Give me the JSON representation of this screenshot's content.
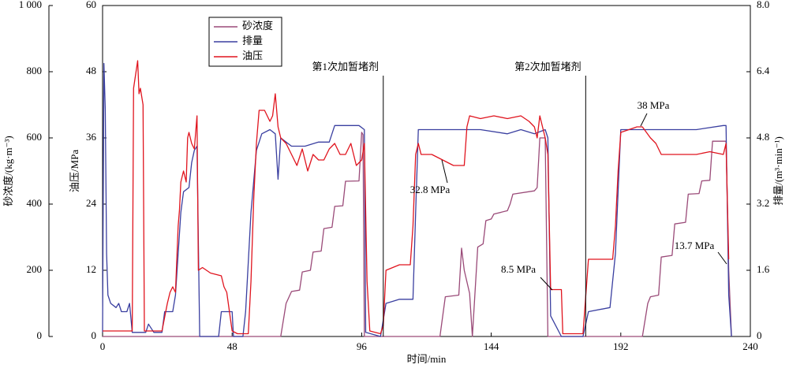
{
  "chart_data": {
    "type": "line",
    "x_label": "时间/min",
    "y_label": "油压/MPa",
    "y2_label": "排量/(m³·min⁻¹)",
    "y3_label": "砂浓度/(kg·m⁻³)",
    "xlim": [
      0,
      240
    ],
    "xticks": [
      0,
      48,
      96,
      144,
      192,
      240
    ],
    "ylim": [
      0,
      60
    ],
    "yticks": [
      0,
      12,
      24,
      36,
      48,
      60
    ],
    "y2lim": [
      0,
      8
    ],
    "y2ticks": [
      0,
      1.6,
      3.2,
      4.8,
      6.4,
      {
        "value": 8,
        "label": "8.0"
      }
    ],
    "y3lim": [
      0,
      1000
    ],
    "y3ticks": [
      0,
      200,
      400,
      600,
      800,
      {
        "value": 1000,
        "label": "1 000"
      }
    ],
    "legend": "upper left",
    "series": [
      {
        "name": "砂浓度",
        "color": "#9a4a78",
        "axis": "y3",
        "x": [
          0,
          66,
          68,
          70,
          73,
          74,
          77,
          78,
          81,
          82,
          85,
          86,
          89,
          90,
          95,
          96,
          96.5,
          97,
          125,
          127,
          132,
          133,
          134,
          136,
          137,
          139,
          141,
          142,
          144,
          145,
          150,
          151,
          152,
          160,
          161,
          162,
          164,
          165,
          200,
          202,
          203,
          206,
          207,
          211,
          212,
          216,
          217,
          221,
          222,
          225,
          226,
          231,
          232,
          233
        ],
        "values": [
          0,
          0,
          100,
          136,
          140,
          195,
          200,
          255,
          258,
          326,
          330,
          393,
          395,
          469,
          470,
          617,
          610,
          0,
          0,
          120,
          125,
          267,
          200,
          130,
          0,
          270,
          280,
          350,
          355,
          370,
          380,
          400,
          430,
          440,
          450,
          600,
          600,
          0,
          0,
          100,
          120,
          125,
          240,
          245,
          340,
          345,
          430,
          432,
          470,
          472,
          590,
          590,
          200,
          0
        ]
      },
      {
        "name": "排量",
        "color": "#3a3fa0",
        "axis": "y2",
        "x": [
          0,
          0.5,
          1,
          1.5,
          2,
          3,
          5,
          6,
          7,
          9,
          10,
          11,
          16,
          17,
          19,
          22,
          23,
          26,
          27,
          29,
          30,
          32,
          33,
          34,
          35,
          36,
          43,
          44,
          48,
          48.5,
          52,
          53,
          55,
          57,
          59,
          62,
          64,
          65,
          66,
          68,
          70,
          75,
          80,
          84,
          86,
          90,
          95,
          97,
          97.5,
          103,
          104,
          105,
          110,
          115,
          116,
          117,
          120,
          130,
          140,
          150,
          155,
          160,
          164,
          165,
          166,
          170,
          178,
          180,
          188,
          190,
          192,
          200,
          210,
          220,
          230,
          231,
          232,
          233
        ],
        "values": [
          0.1,
          6.6,
          5.5,
          2,
          1,
          0.8,
          0.7,
          0.8,
          0.6,
          0.6,
          0.8,
          0.1,
          0.1,
          0.3,
          0.1,
          0.1,
          0.6,
          0.6,
          1,
          3,
          3.5,
          3.6,
          4.2,
          4.5,
          4.6,
          0,
          0,
          0.6,
          0.6,
          0,
          0,
          0.6,
          3,
          4.5,
          4.9,
          5,
          4.9,
          3.8,
          4.8,
          4.7,
          4.6,
          4.6,
          4.7,
          4.7,
          5.1,
          5.1,
          5.1,
          5,
          0.1,
          0,
          0.4,
          0.8,
          0.9,
          0.9,
          3,
          5,
          5,
          5,
          5,
          4.9,
          5,
          4.9,
          5,
          4.8,
          0.5,
          0,
          0,
          0.6,
          0.7,
          2,
          5,
          5,
          5,
          5,
          5.1,
          5.1,
          1,
          0
        ]
      },
      {
        "name": "油压",
        "color": "#e0141e",
        "axis": "y",
        "x": [
          0,
          3,
          11,
          11.5,
          13,
          13.5,
          14,
          15,
          15.5,
          17,
          22,
          24,
          25,
          26,
          27,
          28,
          28.5,
          29,
          30,
          31,
          31.5,
          32,
          33,
          34,
          35,
          35.5,
          37,
          40,
          44,
          45,
          46,
          48,
          50,
          54,
          55,
          56,
          57,
          58,
          60,
          62,
          63,
          64,
          65,
          66,
          68,
          70,
          72,
          74,
          76,
          78,
          80,
          82,
          84,
          86,
          88,
          90,
          92,
          94,
          96,
          97,
          98,
          99,
          103,
          104,
          105,
          110,
          114,
          115,
          116,
          117,
          118,
          122,
          126,
          130,
          134,
          135,
          136,
          140,
          145,
          150,
          155,
          158,
          160,
          161,
          162,
          164,
          165,
          166,
          170,
          170.5,
          178,
          180,
          185,
          189,
          190,
          191,
          192,
          195,
          198,
          200,
          203,
          205,
          207,
          210,
          215,
          220,
          225,
          230,
          231,
          232
        ],
        "values": [
          1,
          1,
          1,
          45,
          50,
          44,
          45,
          42,
          1,
          1,
          1,
          6,
          8,
          9,
          8,
          20,
          23,
          28,
          30,
          28,
          36,
          37,
          35,
          34,
          40,
          12,
          12.5,
          11.5,
          11,
          9,
          8,
          1,
          0.5,
          0.5,
          10,
          25,
          35,
          41,
          41,
          39,
          40,
          44,
          38,
          36,
          35,
          33,
          31,
          34,
          30,
          33,
          32,
          32,
          34,
          35,
          33,
          33,
          35,
          31,
          32,
          35,
          10,
          1,
          0.5,
          2,
          12,
          13,
          13,
          20,
          33,
          35,
          33,
          33,
          32,
          31,
          31,
          38,
          40,
          39.5,
          40,
          39.5,
          40,
          39,
          38,
          36,
          40,
          36,
          33,
          8.5,
          8.5,
          0.5,
          0.5,
          14,
          14,
          14,
          20,
          30,
          37,
          37.5,
          38,
          38,
          36,
          35,
          33,
          33,
          33,
          33,
          33.5,
          33,
          35,
          14
        ]
      }
    ],
    "annotations": [
      {
        "text": "第1次加暂堵剂",
        "x": 104
      },
      {
        "text": "第2次加暂堵剂",
        "x": 179
      },
      {
        "text": "32.8 MPa"
      },
      {
        "text": "8.5 MPa"
      },
      {
        "text": "38 MPa"
      },
      {
        "text": "13.7 MPa"
      }
    ]
  }
}
